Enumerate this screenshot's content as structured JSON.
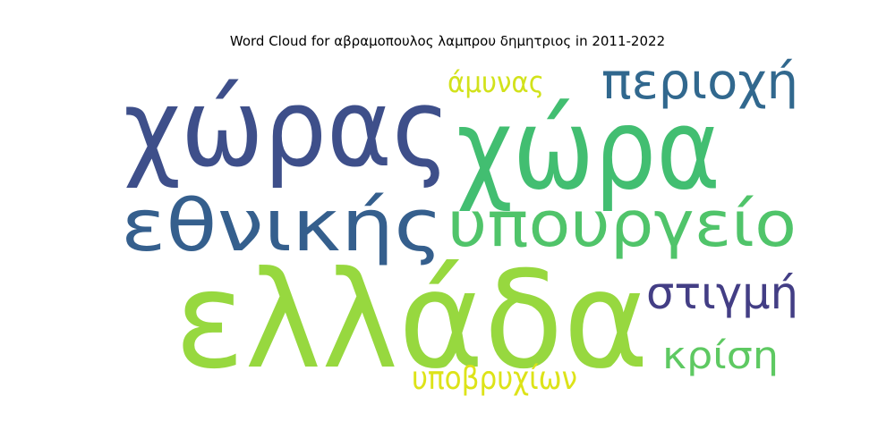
{
  "title": "Word Cloud for αβραμοπουλος λαμπρου δημητριος in 2011-2022",
  "chart_data": {
    "type": "wordcloud",
    "title": "Word Cloud for αβραμοπουλος λαμπρου δημητριος in 2011-2022",
    "words": [
      {
        "text": "ελλάδα",
        "weight": 1.0,
        "color": "#97d83f"
      },
      {
        "text": "χώρας",
        "weight": 0.78,
        "color": "#3e4f8a"
      },
      {
        "text": "χώρα",
        "weight": 0.74,
        "color": "#42be71"
      },
      {
        "text": "εθνικής",
        "weight": 0.56,
        "color": "#355f8d"
      },
      {
        "text": "υπουργείο",
        "weight": 0.52,
        "color": "#50c46a"
      },
      {
        "text": "περιοχή",
        "weight": 0.36,
        "color": "#31688e"
      },
      {
        "text": "στιγμή",
        "weight": 0.33,
        "color": "#433e85"
      },
      {
        "text": "κρίση",
        "weight": 0.33,
        "color": "#5ec962"
      },
      {
        "text": "άμυνας",
        "weight": 0.22,
        "color": "#d2e21b"
      },
      {
        "text": "υποβρυχίων",
        "weight": 0.22,
        "color": "#dde318"
      }
    ]
  }
}
